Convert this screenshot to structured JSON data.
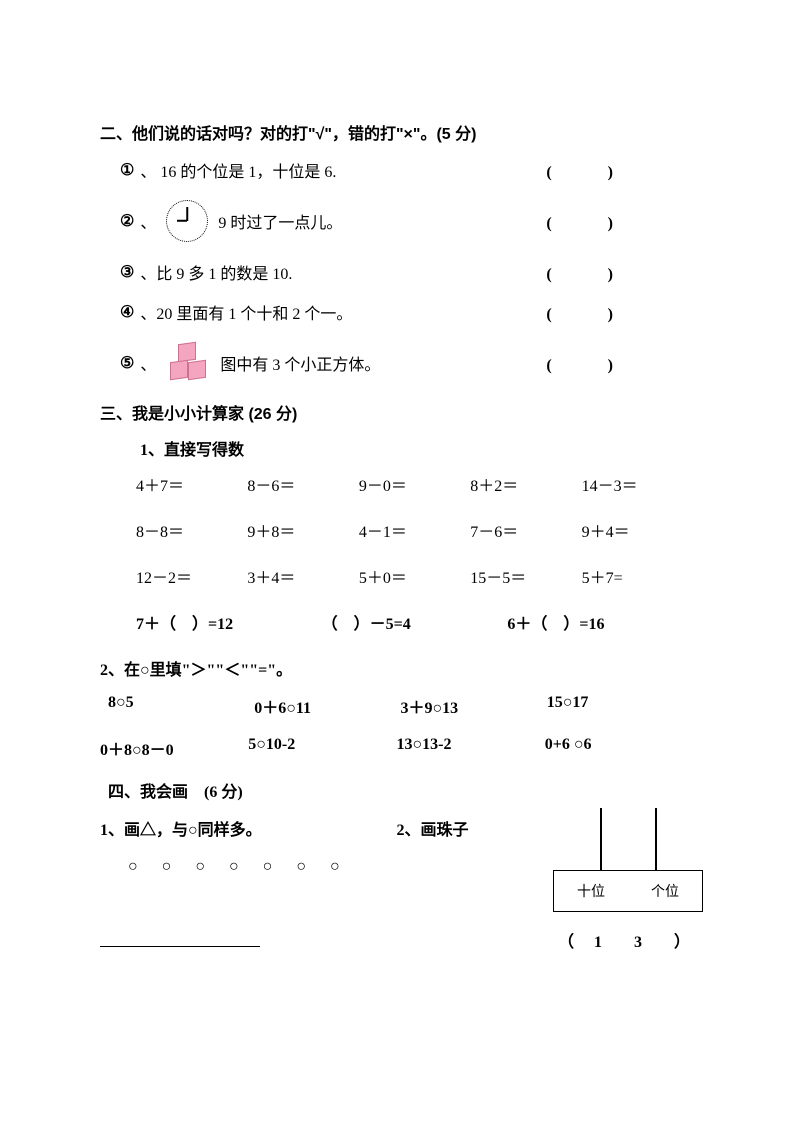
{
  "section2": {
    "title": "二、他们说的话对吗？对的打\"√\"，错的打\"×\"。(5 分)",
    "items": [
      {
        "num": "①",
        "sep": "、",
        "text": "16 的个位是 1，十位是 6.",
        "paren": "(　)"
      },
      {
        "num": "②",
        "sep": "、",
        "text": "9 时过了一点儿。",
        "paren": "(　)",
        "icon": "clock"
      },
      {
        "num": "③",
        "sep": "、",
        "text": "比 9 多 1 的数是 10.",
        "paren": "(　)"
      },
      {
        "num": "④",
        "sep": "、",
        "text": "20 里面有 1 个十和 2 个一。",
        "paren": "(　)"
      },
      {
        "num": "⑤",
        "sep": "、",
        "text": "图中有 3 个小正方体。",
        "paren": "(　)",
        "icon": "cubes"
      }
    ]
  },
  "section3": {
    "title": "三、我是小小计算家  (26 分)",
    "sub1": "1、直接写得数",
    "rows": [
      [
        "4＋7＝",
        "8－6＝",
        "9－0＝",
        "8＋2＝",
        "14－3＝"
      ],
      [
        "8－8＝",
        "9＋8＝",
        "4－1＝",
        "7－6＝",
        "9＋4＝"
      ],
      [
        "12－2＝",
        "3＋4＝",
        "5＋0＝",
        "15－5＝",
        "5＋7="
      ]
    ],
    "fillRow": [
      "7＋（　）=12",
      "（　）－5=4",
      "6＋（　）=16"
    ],
    "sub2": "2、在○里填\"＞\"\"＜\"\"=\"。",
    "compRows": [
      [
        "8○5",
        "0＋6○11",
        "3＋9○13",
        "15○17"
      ],
      [
        "0＋8○8－0",
        "5○10-2",
        "13○13-2",
        "0+6 ○6"
      ]
    ]
  },
  "section4": {
    "title": "四、我会画　(6 分)",
    "left": {
      "label": "1、画△，与○同样多。",
      "circles": "○ ○ ○ ○ ○ ○ ○"
    },
    "right": {
      "label": "2、画珠子",
      "base_left": "十位",
      "base_right": "个位",
      "number": "（ 1　3　）"
    }
  },
  "colors": {
    "text": "#000000",
    "background": "#ffffff",
    "cube_fill": "#f4a6c0",
    "cube_border": "#d07090"
  }
}
